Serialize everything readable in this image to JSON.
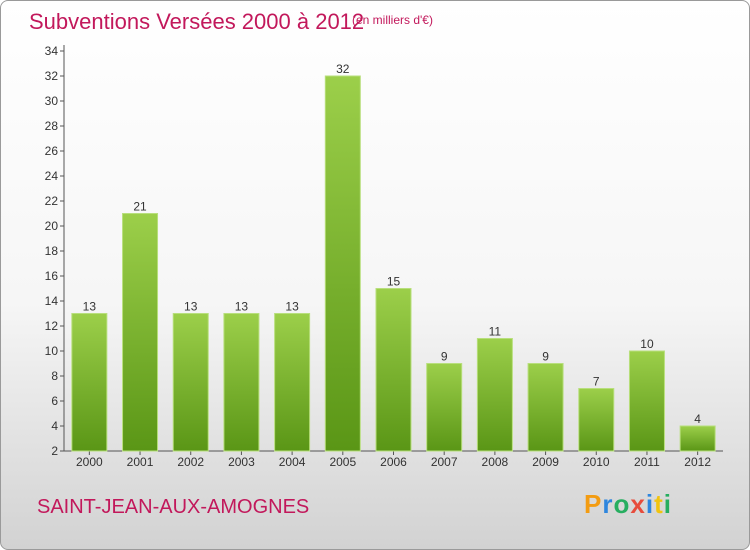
{
  "header": {
    "title": "Subventions Versées 2000 à 2012",
    "unit_note": "(en milliers d'€)"
  },
  "footer": {
    "commune": "SAINT-JEAN-AUX-AMOGNES",
    "logo_letters": [
      "P",
      "r",
      "o",
      "x",
      "i",
      "t",
      "i"
    ],
    "logo_colors": [
      "#f39c12",
      "#2e86de",
      "#27ae60",
      "#e74c3c",
      "#2e86de",
      "#f1c40f",
      "#27ae60"
    ]
  },
  "colors": {
    "accent": "#c2185b",
    "bar_top": "#9ccf4a",
    "bar_bottom": "#5a9616",
    "axis": "#555555"
  },
  "chart_data": {
    "type": "bar",
    "title": "Subventions Versées 2000 à 2012",
    "subtitle": "(en milliers d'€)",
    "categories": [
      "2000",
      "2001",
      "2002",
      "2003",
      "2004",
      "2005",
      "2006",
      "2007",
      "2008",
      "2009",
      "2010",
      "2011",
      "2012"
    ],
    "values": [
      13,
      21,
      13,
      13,
      13,
      32,
      15,
      9,
      11,
      9,
      7,
      10,
      4
    ],
    "ylim": [
      2,
      34
    ],
    "yticks": [
      2,
      4,
      6,
      8,
      10,
      12,
      14,
      16,
      18,
      20,
      22,
      24,
      26,
      28,
      30,
      32,
      34
    ],
    "data_labels": true,
    "grid": false
  }
}
